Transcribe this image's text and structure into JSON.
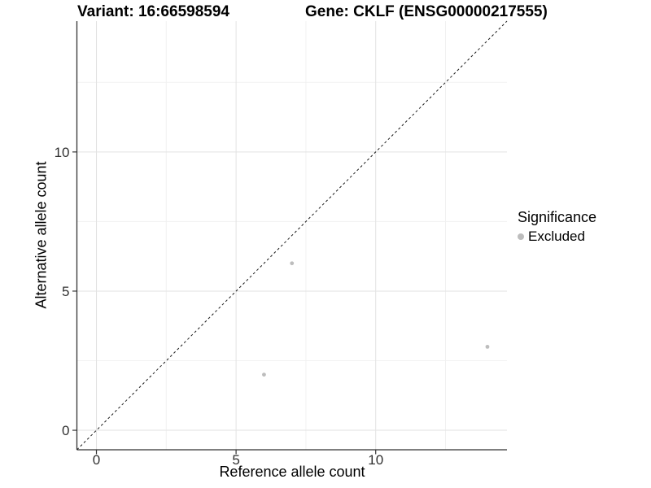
{
  "chart_data": {
    "type": "scatter",
    "title_left": "Variant: 16:66598594",
    "title_right": "Gene: CKLF (ENSG00000217555)",
    "xlabel": "Reference allele count",
    "ylabel": "Alternative allele count",
    "xlim": [
      -0.7,
      14.7
    ],
    "ylim": [
      -0.7,
      14.7
    ],
    "x_major_ticks": [
      0,
      5,
      10
    ],
    "y_major_ticks": [
      0,
      5,
      10
    ],
    "x_minor_ticks": [
      2.5,
      7.5,
      12.5
    ],
    "y_minor_ticks": [
      2.5,
      7.5,
      12.5
    ],
    "grid": "on",
    "reference_line": {
      "type": "identity y=x",
      "slope": 1,
      "intercept": 0,
      "style": "dashed",
      "color": "#1a1a1a"
    },
    "series": [
      {
        "name": "Excluded",
        "color": "#bdbdbd",
        "points": [
          [
            6,
            2
          ],
          [
            7,
            6
          ],
          [
            14,
            3
          ]
        ]
      }
    ],
    "legend": {
      "title": "Significance",
      "position": "right",
      "items": [
        {
          "label": "Excluded",
          "color": "#bdbdbd"
        }
      ]
    },
    "colors": {
      "grid_major": "#e2e2e2",
      "grid_minor": "#f1f1f1",
      "axis_line": "#333333",
      "tick_mark": "#333333",
      "tick_label": "#303030",
      "background": "#ffffff"
    }
  }
}
